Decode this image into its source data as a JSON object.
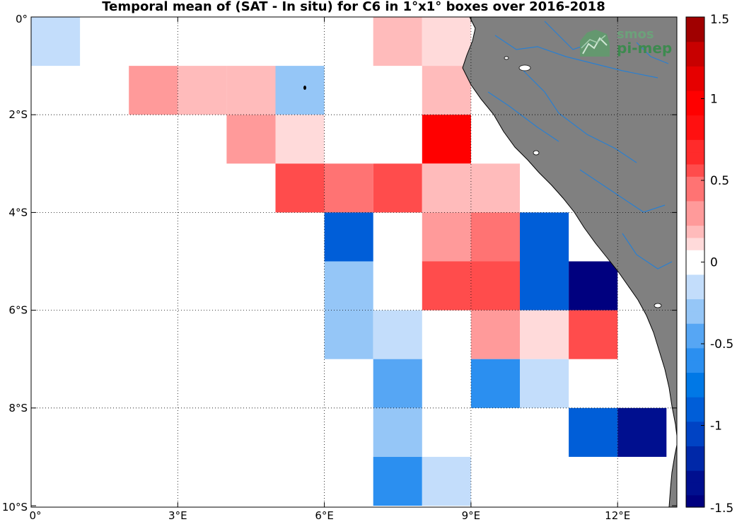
{
  "chart_data": {
    "type": "heatmap",
    "title": "Temporal mean of (SAT - In situ) for C6 in 1°x1° boxes over 2016-2018",
    "x_range": [
      0,
      13.5
    ],
    "y_range": [
      -10,
      0.3
    ],
    "x_ticks": [
      {
        "value": 0,
        "label": "0°"
      },
      {
        "value": 3,
        "label": "3°E"
      },
      {
        "value": 6,
        "label": "6°E"
      },
      {
        "value": 9,
        "label": "9°E"
      },
      {
        "value": 12,
        "label": "12°E"
      }
    ],
    "y_ticks": [
      {
        "value": 0,
        "label": "0°"
      },
      {
        "value": -2,
        "label": "2°S"
      },
      {
        "value": -4,
        "label": "4°S"
      },
      {
        "value": -6,
        "label": "6°S"
      },
      {
        "value": -8,
        "label": "8°S"
      },
      {
        "value": -10,
        "label": "10°S"
      }
    ],
    "grid": true,
    "colorbar": {
      "range": [
        -1.5,
        1.5
      ],
      "ticks": [
        {
          "value": 1.5,
          "label": "1.5"
        },
        {
          "value": 1,
          "label": "1"
        },
        {
          "value": 0.5,
          "label": "0.5"
        },
        {
          "value": 0,
          "label": "0"
        },
        {
          "value": -0.5,
          "label": "-0.5"
        },
        {
          "value": -1,
          "label": "-1"
        },
        {
          "value": -1.5,
          "label": "-1.5"
        }
      ]
    },
    "cells": [
      {
        "lon": 0,
        "lat": 0,
        "value": -0.1
      },
      {
        "lon": 7,
        "lat": 0,
        "value": 0.25
      },
      {
        "lon": 8,
        "lat": 0,
        "value": 0.1
      },
      {
        "lon": 2,
        "lat": -1,
        "value": 0.35
      },
      {
        "lon": 3,
        "lat": -1,
        "value": 0.25
      },
      {
        "lon": 4,
        "lat": -1,
        "value": 0.25
      },
      {
        "lon": 5,
        "lat": -1,
        "value": -0.35
      },
      {
        "lon": 8,
        "lat": -1,
        "value": 0.25
      },
      {
        "lon": 4,
        "lat": -2,
        "value": 0.35
      },
      {
        "lon": 5,
        "lat": -2,
        "value": 0.1
      },
      {
        "lon": 8,
        "lat": -2,
        "value": 1.0
      },
      {
        "lon": 5,
        "lat": -3,
        "value": 0.6
      },
      {
        "lon": 6,
        "lat": -3,
        "value": 0.5
      },
      {
        "lon": 7,
        "lat": -3,
        "value": 0.6
      },
      {
        "lon": 8,
        "lat": -3,
        "value": 0.25
      },
      {
        "lon": 9,
        "lat": -3,
        "value": 0.25
      },
      {
        "lon": 6,
        "lat": -4,
        "value": -0.9
      },
      {
        "lon": 8,
        "lat": -4,
        "value": 0.35
      },
      {
        "lon": 9,
        "lat": -4,
        "value": 0.5
      },
      {
        "lon": 10,
        "lat": -4,
        "value": -0.9
      },
      {
        "lon": 6,
        "lat": -5,
        "value": -0.3
      },
      {
        "lon": 8,
        "lat": -5,
        "value": 0.6
      },
      {
        "lon": 9,
        "lat": -5,
        "value": 0.6
      },
      {
        "lon": 10,
        "lat": -5,
        "value": -0.95
      },
      {
        "lon": 11,
        "lat": -5,
        "value": -1.45
      },
      {
        "lon": 6,
        "lat": -6,
        "value": -0.3
      },
      {
        "lon": 7,
        "lat": -6,
        "value": -0.1
      },
      {
        "lon": 9,
        "lat": -6,
        "value": 0.35
      },
      {
        "lon": 10,
        "lat": -6,
        "value": 0.1
      },
      {
        "lon": 11,
        "lat": -6,
        "value": 0.6
      },
      {
        "lon": 7,
        "lat": -7,
        "value": -0.4
      },
      {
        "lon": 9,
        "lat": -7,
        "value": -0.6
      },
      {
        "lon": 10,
        "lat": -7,
        "value": -0.1
      },
      {
        "lon": 7,
        "lat": -8,
        "value": -0.3
      },
      {
        "lon": 11,
        "lat": -8,
        "value": -0.85
      },
      {
        "lon": 12,
        "lat": -8,
        "value": -1.4
      },
      {
        "lon": 7,
        "lat": -9,
        "value": -0.6
      },
      {
        "lon": 8,
        "lat": -9,
        "value": -0.2
      }
    ],
    "land_color": "#808080",
    "river_color": "#2a7fd0"
  },
  "logo": {
    "line1": "smos",
    "line2": "pi-mep"
  }
}
